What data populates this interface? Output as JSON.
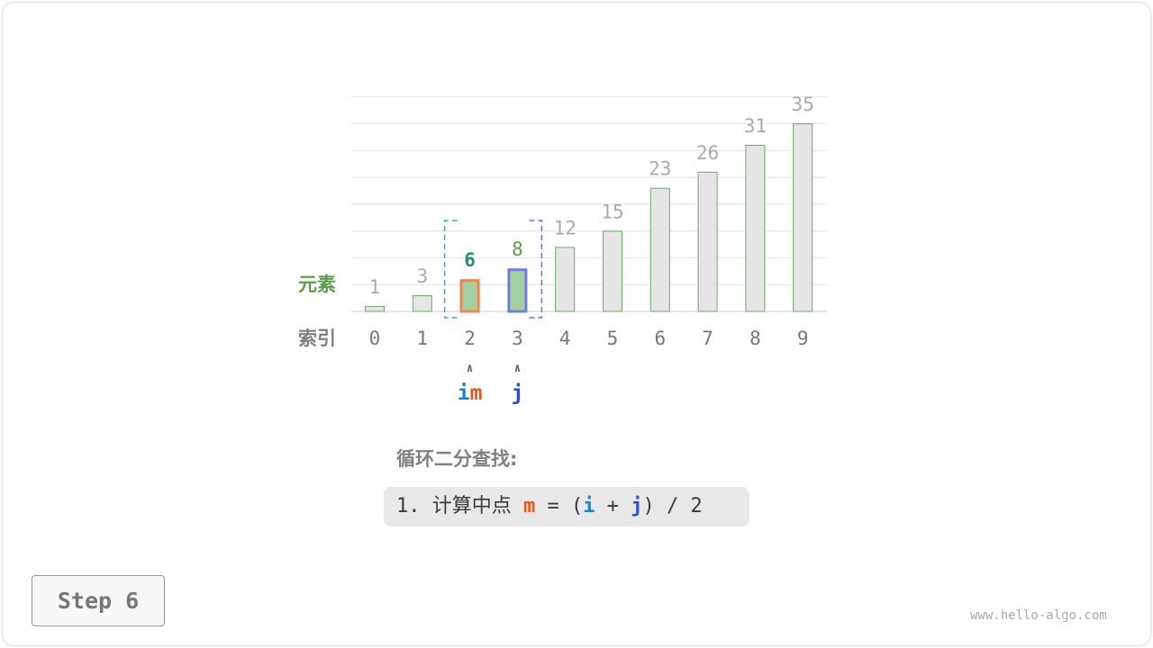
{
  "diagram": {
    "row_labels": {
      "element": "元素",
      "index": "索引"
    },
    "values": [
      1,
      3,
      6,
      8,
      12,
      15,
      23,
      26,
      31,
      35
    ],
    "indices": [
      "0",
      "1",
      "2",
      "3",
      "4",
      "5",
      "6",
      "7",
      "8",
      "9"
    ],
    "highlight": {
      "m_index": 2,
      "j_index": 3,
      "i_index": 2
    },
    "pointers": [
      {
        "index": 2,
        "labels": [
          {
            "text": "i",
            "color": "#1b82d1"
          },
          {
            "text": "m",
            "color": "#e8541a"
          }
        ]
      },
      {
        "index": 3,
        "labels": [
          {
            "text": "j",
            "color": "#2f4fd0"
          }
        ]
      }
    ],
    "arrow_glyph": "∧",
    "colors": {
      "bar_fill": "#e5e5e5",
      "bar_stroke": "#6aaa64",
      "active_fill": "#a5d0a0",
      "m_border": "#f58451",
      "j_border": "#6b80dc",
      "m_label": "#2c8a7a",
      "j_label": "#5a9e4c",
      "range_left": "#3fa7e8",
      "range_right": "#5a7ad8"
    }
  },
  "caption": {
    "title": "循环二分查找:",
    "step_num": "1.",
    "step_text": "计算中点",
    "formula": {
      "m": "m",
      "eq": " = (",
      "i": "i",
      "plus": " + ",
      "j": "j",
      "rest": ") / 2"
    }
  },
  "step_button": "Step 6",
  "watermark": "www.hello-algo.com"
}
